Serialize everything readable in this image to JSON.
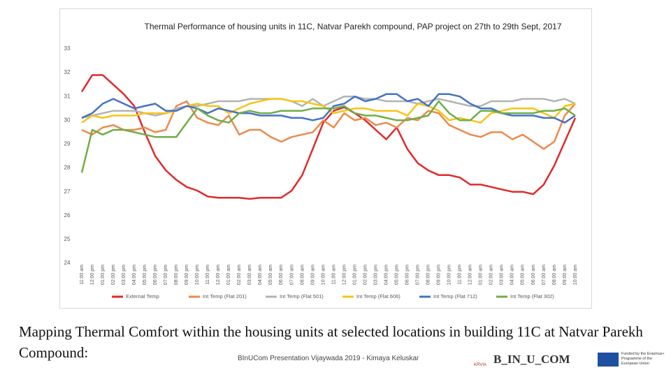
{
  "chart_data": {
    "type": "line",
    "title": "Thermal Performance of housing units in 11C, Natvar Parekh compound, PAP project on 27th to 29th Sept, 2017",
    "categories": [
      "11:00 am",
      "12:00 pm",
      "01:00 pm",
      "02:00 pm",
      "03:00 pm",
      "04:00 pm",
      "05:00 pm",
      "06:00 pm",
      "07:00 pm",
      "08:00 pm",
      "09:00 pm",
      "10:00 pm",
      "11:00 pm",
      "12:00 am",
      "01:00 am",
      "02:00 am",
      "03:00 am",
      "04:00 am",
      "05:00 am",
      "06:00 am",
      "07:00 am",
      "08:00 am",
      "09:00 am",
      "10:00 am",
      "11:00 am",
      "12:00 pm",
      "01:00 pm",
      "02:00 pm",
      "03:00 pm",
      "04:00 pm",
      "05:00 pm",
      "06:00 pm",
      "07:00 pm",
      "08:00 pm",
      "09:00 pm",
      "10:00 pm",
      "11:00 pm",
      "12:00 am",
      "01:00 am",
      "02:00 am",
      "03:00 am",
      "04:00 am",
      "05:00 am",
      "06:00 am",
      "07:00 am",
      "08:00 am",
      "09:00 am",
      "10:00 am"
    ],
    "series": [
      {
        "name": "External Temp",
        "color": "#e02a2a",
        "values": [
          31.2,
          31.9,
          31.9,
          31.5,
          31.1,
          30.6,
          29.5,
          28.5,
          27.9,
          27.5,
          27.2,
          27.05,
          26.8,
          26.75,
          26.75,
          26.75,
          26.7,
          26.75,
          26.75,
          26.75,
          27.05,
          27.7,
          28.8,
          29.9,
          30.4,
          30.55,
          30.3,
          30.0,
          29.6,
          29.2,
          29.7,
          28.8,
          28.2,
          27.9,
          27.7,
          27.7,
          27.6,
          27.3,
          27.3,
          27.2,
          27.1,
          27.0,
          27.0,
          26.9,
          27.3,
          28.1,
          29.1,
          30.1
        ]
      },
      {
        "name": "Int Temp (Flat 201)",
        "color": "#ed8a4c",
        "values": [
          29.6,
          29.4,
          29.7,
          29.8,
          29.6,
          29.6,
          29.7,
          29.5,
          29.6,
          30.6,
          30.8,
          30.1,
          29.9,
          29.8,
          30.2,
          29.4,
          29.6,
          29.6,
          29.3,
          29.1,
          29.3,
          29.4,
          29.5,
          30.0,
          29.7,
          30.3,
          30.0,
          30.1,
          29.8,
          29.9,
          29.7,
          30.1,
          30.0,
          30.4,
          30.3,
          29.8,
          29.6,
          29.4,
          29.3,
          29.5,
          29.5,
          29.2,
          29.4,
          29.1,
          28.8,
          29.1,
          30.2,
          30.7
        ]
      },
      {
        "name": "Int Temp (Flat 501)",
        "color": "#b3b3b3",
        "values": [
          30.1,
          30.2,
          30.3,
          30.4,
          30.4,
          30.4,
          30.3,
          30.2,
          30.3,
          30.5,
          30.6,
          30.6,
          30.7,
          30.8,
          30.8,
          30.8,
          30.9,
          30.9,
          30.9,
          30.9,
          30.8,
          30.6,
          30.9,
          30.6,
          30.8,
          31.0,
          31.0,
          30.9,
          30.9,
          30.8,
          30.8,
          30.8,
          30.7,
          30.8,
          30.9,
          30.8,
          30.7,
          30.6,
          30.6,
          30.8,
          30.8,
          30.8,
          30.9,
          30.9,
          30.9,
          30.8,
          30.9,
          30.7
        ]
      },
      {
        "name": "Int Temp (Flat 606)",
        "color": "#f5c518",
        "values": [
          29.9,
          30.2,
          30.1,
          30.2,
          30.2,
          30.2,
          30.3,
          30.3,
          30.3,
          30.4,
          30.6,
          30.7,
          30.6,
          30.6,
          30.3,
          30.5,
          30.7,
          30.8,
          30.9,
          30.9,
          30.8,
          30.8,
          30.7,
          30.6,
          30.3,
          30.4,
          30.5,
          30.5,
          30.4,
          30.4,
          30.4,
          30.2,
          30.7,
          30.6,
          30.4,
          30.0,
          30.1,
          30.0,
          29.9,
          30.3,
          30.4,
          30.5,
          30.5,
          30.5,
          30.3,
          30.1,
          30.6,
          30.7
        ]
      },
      {
        "name": "Int Temp (Flat 712)",
        "color": "#4472c4",
        "values": [
          30.1,
          30.3,
          30.7,
          30.9,
          30.7,
          30.5,
          30.6,
          30.7,
          30.4,
          30.4,
          30.6,
          30.5,
          30.3,
          30.5,
          30.4,
          30.3,
          30.3,
          30.2,
          30.2,
          30.2,
          30.1,
          30.1,
          30.0,
          30.1,
          30.6,
          30.7,
          31.0,
          30.8,
          30.9,
          31.1,
          31.1,
          30.8,
          30.9,
          30.6,
          31.1,
          31.1,
          31.0,
          30.7,
          30.5,
          30.5,
          30.3,
          30.2,
          30.2,
          30.2,
          30.1,
          30.1,
          29.9,
          30.2
        ]
      },
      {
        "name": "Int Temp (Flat 302)",
        "color": "#70ad47",
        "values": [
          27.8,
          29.6,
          29.4,
          29.6,
          29.6,
          29.5,
          29.4,
          29.3,
          29.3,
          29.3,
          29.9,
          30.5,
          30.2,
          30.0,
          29.9,
          30.3,
          30.4,
          30.3,
          30.3,
          30.4,
          30.4,
          30.4,
          30.5,
          30.5,
          30.5,
          30.6,
          30.3,
          30.2,
          30.2,
          30.1,
          30.0,
          30.0,
          30.1,
          30.2,
          30.8,
          30.3,
          30.0,
          30.0,
          30.4,
          30.4,
          30.3,
          30.3,
          30.3,
          30.3,
          30.4,
          30.4,
          30.5,
          30.2
        ]
      }
    ],
    "ylim": [
      24,
      33
    ],
    "yticks": [
      24,
      25,
      26,
      27,
      28,
      29,
      30,
      31,
      32,
      33
    ],
    "grid": false,
    "legend": "bottom"
  },
  "slide": {
    "caption": "Mapping Thermal Comfort within the housing units at selected locations in building 11C at Natvar Parekh Compound:",
    "footer": "BInUCom Presentation Vijaywada 2019 - Kimaya Keluskar",
    "logo": "B_IN_U_COM",
    "krvia": "KRVIA",
    "eu_text": "Funded by the Erasmus+ Programme of the European Union"
  }
}
